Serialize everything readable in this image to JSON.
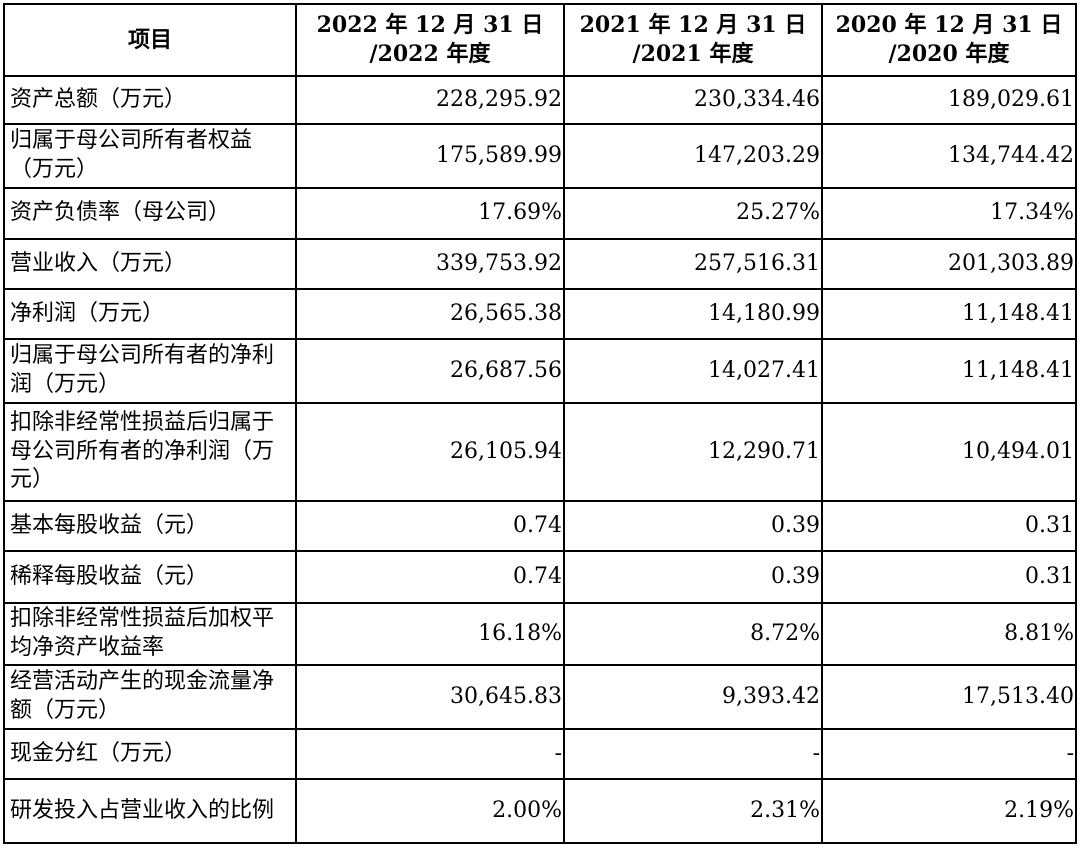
{
  "table": {
    "headers": [
      {
        "line1": "项目",
        "line2": ""
      },
      {
        "line1": "2022 年 12 月 31 日",
        "line2": "/2022 年度"
      },
      {
        "line1": "2021 年 12 月 31 日",
        "line2": "/2021 年度"
      },
      {
        "line1": "2020 年 12 月 31 日",
        "line2": "/2020 年度"
      }
    ],
    "rows": [
      {
        "label": "资产总额（万元）",
        "v2022": "228,295.92",
        "v2021": "230,334.46",
        "v2020": "189,029.61"
      },
      {
        "label": "归属于母公司所有者权益（万元）",
        "v2022": "175,589.99",
        "v2021": "147,203.29",
        "v2020": "134,744.42"
      },
      {
        "label": "资产负债率（母公司）",
        "v2022": "17.69%",
        "v2021": "25.27%",
        "v2020": "17.34%"
      },
      {
        "label": "营业收入（万元）",
        "v2022": "339,753.92",
        "v2021": "257,516.31",
        "v2020": "201,303.89"
      },
      {
        "label": "净利润（万元）",
        "v2022": "26,565.38",
        "v2021": "14,180.99",
        "v2020": "11,148.41"
      },
      {
        "label": "归属于母公司所有者的净利润（万元）",
        "v2022": "26,687.56",
        "v2021": "14,027.41",
        "v2020": "11,148.41"
      },
      {
        "label": "扣除非经常性损益后归属于母公司所有者的净利润（万元）",
        "v2022": "26,105.94",
        "v2021": "12,290.71",
        "v2020": "10,494.01"
      },
      {
        "label": "基本每股收益（元）",
        "v2022": "0.74",
        "v2021": "0.39",
        "v2020": "0.31"
      },
      {
        "label": "稀释每股收益（元）",
        "v2022": "0.74",
        "v2021": "0.39",
        "v2020": "0.31"
      },
      {
        "label": "扣除非经常性损益后加权平均净资产收益率",
        "v2022": "16.18%",
        "v2021": "8.72%",
        "v2020": "8.81%"
      },
      {
        "label": "经营活动产生的现金流量净额（万元）",
        "v2022": "30,645.83",
        "v2021": "9,393.42",
        "v2020": "17,513.40"
      },
      {
        "label": "现金分红（万元）",
        "v2022": "-",
        "v2021": "-",
        "v2020": "-"
      },
      {
        "label": "研发投入占营业收入的比例",
        "v2022": "2.00%",
        "v2021": "2.31%",
        "v2020": "2.19%"
      }
    ]
  }
}
